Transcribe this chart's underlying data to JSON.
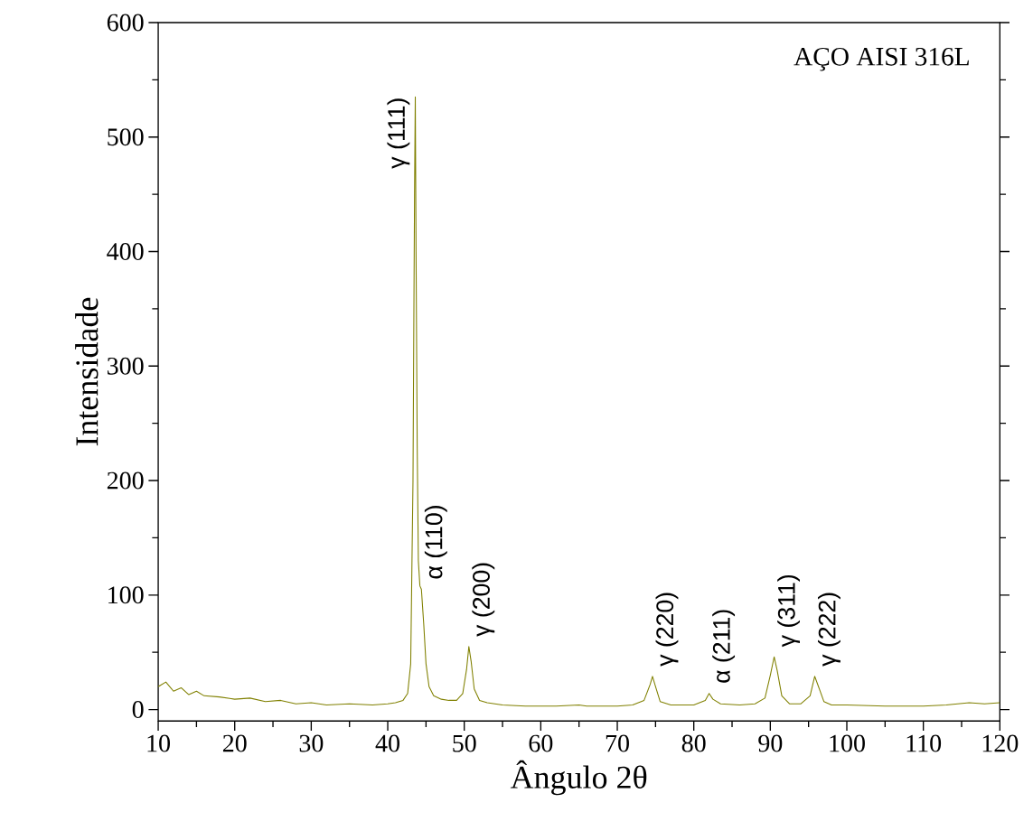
{
  "chart_data": {
    "type": "line",
    "xlabel": "Ângulo 2θ",
    "ylabel": "Intensidade",
    "x": [
      10,
      11,
      12,
      13,
      14,
      15,
      16,
      18,
      20,
      22,
      24,
      26,
      28,
      30,
      32,
      35,
      38,
      40,
      41,
      42,
      42.6,
      43.0,
      43.3,
      43.5,
      43.6,
      43.7,
      43.85,
      44.0,
      44.2,
      44.4,
      44.7,
      45.0,
      45.4,
      46,
      47,
      48,
      49,
      49.8,
      50.3,
      50.6,
      50.9,
      51.3,
      52,
      53,
      55,
      58,
      62,
      65,
      66,
      70,
      72,
      73.5,
      74.3,
      74.6,
      75.0,
      75.6,
      77,
      80,
      81.5,
      82,
      82.5,
      83.5,
      86,
      88,
      89.3,
      90.0,
      90.5,
      90.9,
      91.5,
      92.5,
      94,
      95.2,
      95.8,
      96.3,
      97,
      98,
      100,
      105,
      110,
      113,
      116,
      118,
      120
    ],
    "series": [
      {
        "color": "#808000",
        "values": [
          20,
          24,
          16,
          19,
          13,
          16,
          12,
          11,
          9,
          10,
          7,
          8,
          5,
          6,
          4,
          5,
          4,
          5,
          6,
          8,
          14,
          40,
          200,
          450,
          535,
          400,
          230,
          130,
          108,
          105,
          75,
          40,
          20,
          12,
          9,
          8,
          8,
          14,
          35,
          55,
          42,
          18,
          8,
          6,
          4,
          3,
          3,
          4,
          3,
          3,
          4,
          8,
          22,
          29,
          20,
          7,
          4,
          4,
          8,
          14,
          9,
          5,
          4,
          5,
          10,
          30,
          46,
          34,
          12,
          5,
          5,
          12,
          29,
          20,
          7,
          4,
          4,
          3,
          3,
          4,
          6,
          5,
          6
        ]
      }
    ],
    "xlim": [
      10,
      120
    ],
    "ylim": [
      -10,
      600
    ],
    "xticks": [
      10,
      20,
      30,
      40,
      50,
      60,
      70,
      80,
      90,
      100,
      110,
      120
    ],
    "yticks": [
      0,
      100,
      200,
      300,
      400,
      500,
      600
    ],
    "marker": "none",
    "line_style": "solid",
    "annotations": [
      "AÇO AISI 316L",
      {
        "text": "γ (111)",
        "x": 43.6,
        "y": 535
      },
      {
        "text": "α (110)",
        "x": 44.4,
        "y": 105
      },
      {
        "text": "γ (200)",
        "x": 50.6,
        "y": 55
      },
      {
        "text": "γ (220)",
        "x": 74.6,
        "y": 29
      },
      {
        "text": "α (211)",
        "x": 82,
        "y": 14
      },
      {
        "text": "γ (311)",
        "x": 90.5,
        "y": 46
      },
      {
        "text": "γ (222)",
        "x": 95.8,
        "y": 29
      }
    ]
  }
}
